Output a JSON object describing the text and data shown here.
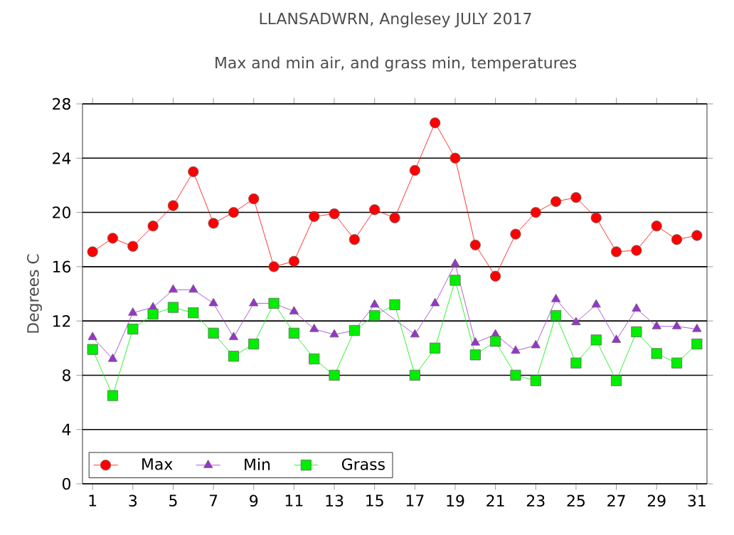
{
  "chart_data": {
    "type": "line",
    "title": "LLANSADWRN, Anglesey JULY 2017",
    "subtitle": "Max and min air, and grass min, temperatures",
    "ylabel": "Degrees C",
    "x": [
      1,
      2,
      3,
      4,
      5,
      6,
      7,
      8,
      9,
      10,
      11,
      12,
      13,
      14,
      15,
      16,
      17,
      18,
      19,
      20,
      21,
      22,
      23,
      24,
      25,
      26,
      27,
      28,
      29,
      30,
      31
    ],
    "xlim": [
      0.5,
      31.5
    ],
    "xticks": [
      1,
      3,
      5,
      7,
      9,
      11,
      13,
      15,
      17,
      19,
      21,
      23,
      25,
      27,
      29,
      31
    ],
    "ylim": [
      0,
      28
    ],
    "yticks": [
      0,
      4,
      8,
      12,
      16,
      20,
      24,
      28
    ],
    "grid": "y",
    "legend": "bottom left",
    "series": [
      {
        "name": "Max",
        "color": "#ff0000",
        "marker": "circle",
        "values": [
          17.1,
          18.1,
          17.5,
          19.0,
          20.5,
          23.0,
          19.2,
          20.0,
          21.0,
          16.0,
          16.4,
          19.7,
          19.9,
          18.0,
          20.2,
          19.6,
          23.1,
          26.6,
          24.0,
          17.6,
          15.3,
          18.4,
          20.0,
          20.8,
          21.1,
          19.6,
          17.1,
          17.2,
          19.0,
          18.0,
          18.3
        ]
      },
      {
        "name": "Min",
        "color": "#9933cc",
        "marker": "triangle",
        "values": [
          10.8,
          9.2,
          12.6,
          13.0,
          14.3,
          14.3,
          13.3,
          10.8,
          13.3,
          13.3,
          12.7,
          11.4,
          11.0,
          11.3,
          13.2,
          null,
          11.0,
          13.3,
          16.2,
          10.4,
          11.0,
          9.8,
          10.2,
          13.6,
          11.9,
          13.2,
          10.6,
          12.9,
          11.6,
          11.6,
          11.4
        ]
      },
      {
        "name": "Grass",
        "color": "#00ee00",
        "marker": "square",
        "values": [
          9.9,
          6.5,
          11.4,
          12.5,
          13.0,
          12.6,
          11.1,
          9.4,
          10.3,
          13.3,
          11.1,
          9.2,
          8.0,
          11.3,
          12.4,
          13.2,
          8.0,
          10.0,
          15.0,
          9.5,
          10.5,
          8.0,
          7.6,
          12.4,
          8.9,
          10.6,
          7.6,
          11.2,
          9.6,
          8.9,
          10.3
        ]
      }
    ]
  }
}
